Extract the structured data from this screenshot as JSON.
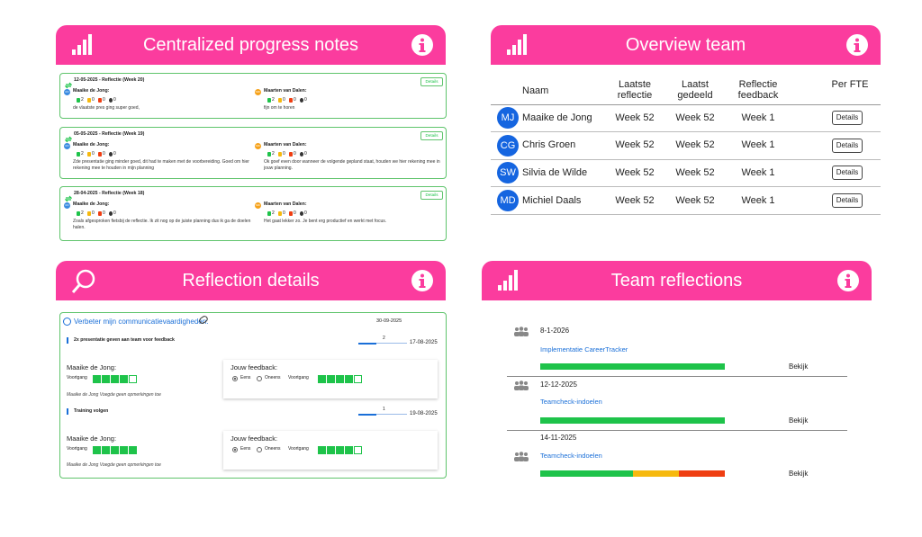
{
  "progress_notes": {
    "title": "Centralized progress notes",
    "cards": [
      {
        "heading": "12-05-2025 - Reflectie (Week 20)",
        "button": "Details",
        "entries": [
          {
            "initials": "MJ",
            "name": "Maaike de Jong:",
            "counts": [
              2,
              0,
              0,
              0
            ],
            "text": "de vlaatste pres ging super goed,"
          },
          {
            "initials": "MD",
            "name": "Maarten van Dalen:",
            "counts": [
              2,
              0,
              0,
              0
            ],
            "text": "fijn om te horen"
          }
        ]
      },
      {
        "heading": "05-05-2025 - Reflectie (Week 19)",
        "button": "Details",
        "entries": [
          {
            "initials": "MJ",
            "name": "Maaike de Jong:",
            "counts": [
              2,
              0,
              0,
              0
            ],
            "text": "Zde presentatie ging minder goed, dit had te maken met de voorbereiding. Goed om hier rekening mee te houden in mijn planning"
          },
          {
            "initials": "MD",
            "name": "Maarten van Dalen:",
            "counts": [
              2,
              0,
              0,
              0
            ],
            "text": "Ok goef even door wanneer de volgende gepland staat, houden we hier rekening mee in jouw planning."
          }
        ]
      },
      {
        "heading": "28-04-2025 - Reflectie (Week 18)",
        "button": "Details",
        "entries": [
          {
            "initials": "MJ",
            "name": "Maaike de Jong:",
            "counts": [
              2,
              0,
              0,
              0
            ],
            "text": "Zoals afgesproken fietsbij de reflectie. Ik zit nog op de juiste planning dus ik ga de doelen halen."
          },
          {
            "initials": "MD",
            "name": "Maarten van Dalen:",
            "counts": [
              2,
              0,
              0,
              0
            ],
            "text": "Het gaat lekker zo. Je bent erg productief en werkt met focus."
          }
        ]
      }
    ]
  },
  "overview_team": {
    "title": "Overview team",
    "columns": [
      "Naam",
      "Laatste reflectie",
      "Laatst gedeeld",
      "Reflectie feedback",
      "Per FTE"
    ],
    "rows": [
      {
        "initials": "MJ",
        "name": "Maaike de Jong",
        "last_reflection": "Week 52",
        "last_shared": "Week 52",
        "feedback": "Week 1",
        "button": "Details"
      },
      {
        "initials": "CG",
        "name": "Chris Groen",
        "last_reflection": "Week 52",
        "last_shared": "Week 52",
        "feedback": "Week 1",
        "button": "Details"
      },
      {
        "initials": "SW",
        "name": "Silvia de Wilde",
        "last_reflection": "Week 52",
        "last_shared": "Week 52",
        "feedback": "Week 1",
        "button": "Details"
      },
      {
        "initials": "MD",
        "name": "Michiel Daals",
        "last_reflection": "Week 52",
        "last_shared": "Week 52",
        "feedback": "Week 1",
        "button": "Details"
      }
    ]
  },
  "reflection_details": {
    "title": "Reflection details",
    "goal": "Verbeter mijn communicatievaardigheden.",
    "date": "30-09-2025",
    "steps": [
      {
        "title": "2x presentatie geven aan team voor feedback",
        "count": 2,
        "date": "17-08-2025",
        "person": "Maaike de Jong:",
        "progress_label": "Voortgang",
        "progress": 4,
        "progress_max": 5,
        "note": "Maaike de Jong Voegde geen opmerkingen toe",
        "feedback_label": "Jouw feedback:",
        "options": [
          "Eens",
          "Oneens"
        ],
        "feedback_progress_label": "Voortgang",
        "feedback_progress": 4
      },
      {
        "title": "Training volgen",
        "count": 1,
        "date": "19-08-2025",
        "person": "Maaike de Jong:",
        "progress_label": "Voortgang",
        "progress": 5,
        "progress_max": 5,
        "note": "Maaike de Jong Voegde geen opmerkingen toe",
        "feedback_label": "Jouw feedback:",
        "options": [
          "Eens",
          "Oneens"
        ],
        "feedback_progress_label": "Voortgang",
        "feedback_progress": 4
      }
    ]
  },
  "team_reflections": {
    "title": "Team reflections",
    "items": [
      {
        "date": "8-1-2026",
        "title": "Implementatie CareerTracker",
        "segments": [
          {
            "color": "#1ec34a",
            "value": 100
          }
        ],
        "action": "Bekijk"
      },
      {
        "date": "12-12-2025",
        "title": "Teamcheck-indoelen",
        "segments": [
          {
            "color": "#1ec34a",
            "value": 100
          }
        ],
        "action": "Bekijk"
      },
      {
        "date": "14-11-2025",
        "title": "Teamcheck-indoelen",
        "segments": [
          {
            "color": "#1ec34a",
            "value": 50
          },
          {
            "color": "#f6b90e",
            "value": 25
          },
          {
            "color": "#ef3e12",
            "value": 25
          }
        ],
        "action": "Bekijk"
      }
    ]
  }
}
